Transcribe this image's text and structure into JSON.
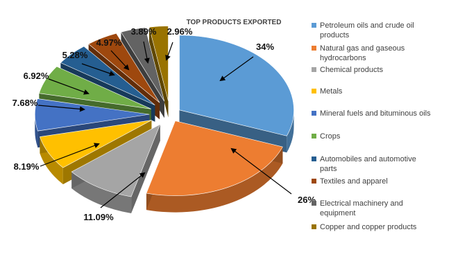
{
  "chart_data": {
    "type": "pie",
    "title": "TOP PRODUCTS EXPORTED",
    "legend_position": "right",
    "slices": [
      {
        "label": "Petroleum oils and crude oil products",
        "value": 34,
        "value_label": "34%",
        "color": "#5B9BD5"
      },
      {
        "label": "Natural gas and gaseous hydrocarbons",
        "value": 26,
        "value_label": "26%",
        "color": "#ED7D31"
      },
      {
        "label": "Chemical products",
        "value": 11.09,
        "value_label": "11.09%",
        "color": "#A5A5A5"
      },
      {
        "label": "Metals",
        "value": 8.19,
        "value_label": "8.19%",
        "color": "#FFC000"
      },
      {
        "label": "Mineral fuels and bituminous oils",
        "value": 7.68,
        "value_label": "7.68%",
        "color": "#4472C4"
      },
      {
        "label": "Crops",
        "value": 6.92,
        "value_label": "6.92%",
        "color": "#70AD47"
      },
      {
        "label": "Automobiles and automotive parts",
        "value": 5.28,
        "value_label": "5.28%",
        "color": "#255E91"
      },
      {
        "label": "Textiles and apparel",
        "value": 4.97,
        "value_label": "4.97%",
        "color": "#9E480E"
      },
      {
        "label": "Electrical machinery and equipment",
        "value": 3.89,
        "value_label": "3.89%",
        "color": "#636363"
      },
      {
        "label": "Copper and copper products",
        "value": 2.96,
        "value_label": "2.96%",
        "color": "#997300"
      }
    ]
  }
}
